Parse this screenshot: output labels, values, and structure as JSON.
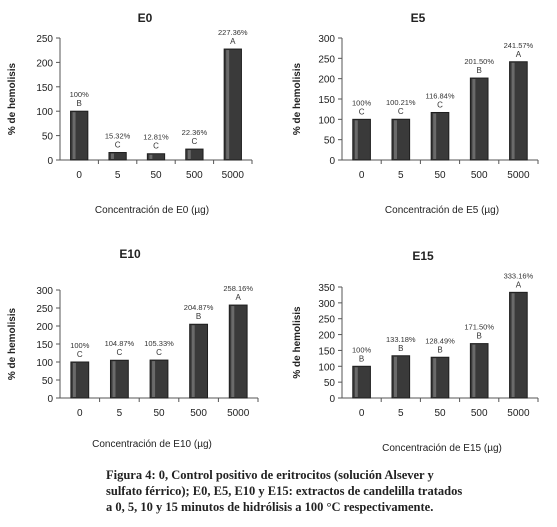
{
  "chart_data": [
    {
      "type": "bar",
      "title": "E0",
      "xlabel": "Concentración de E0 (µg)",
      "ylabel": "% de hemolisis",
      "ylim": [
        0,
        250
      ],
      "yticks": [
        0,
        50,
        100,
        150,
        200,
        250
      ],
      "categories": [
        "0",
        "5",
        "50",
        "500",
        "5000"
      ],
      "values": [
        100,
        15.32,
        12.81,
        22.36,
        227.36
      ],
      "value_labels": [
        "100%",
        "15.32%",
        "12.81%",
        "22.36%",
        "227.36%"
      ],
      "letters": [
        "B",
        "C",
        "C",
        "C",
        "A"
      ]
    },
    {
      "type": "bar",
      "title": "E5",
      "xlabel": "Concentración de E5 (µg)",
      "ylabel": "% de hemolisis",
      "ylim": [
        0,
        300
      ],
      "yticks": [
        0,
        50,
        100,
        150,
        200,
        250,
        300
      ],
      "categories": [
        "0",
        "5",
        "50",
        "500",
        "5000"
      ],
      "values": [
        100,
        100.21,
        116.84,
        201.5,
        241.57
      ],
      "value_labels": [
        "100%",
        "100.21%",
        "116.84%",
        "201.50%",
        "241.57%"
      ],
      "letters": [
        "C",
        "C",
        "C",
        "B",
        "A"
      ]
    },
    {
      "type": "bar",
      "title": "E10",
      "xlabel": "Concentración de E10 (µg)",
      "ylabel": "% de hemolisis",
      "ylim": [
        0,
        300
      ],
      "yticks": [
        0,
        50,
        100,
        150,
        200,
        250,
        300
      ],
      "categories": [
        "0",
        "5",
        "50",
        "500",
        "5000"
      ],
      "values": [
        100,
        104.87,
        105.33,
        204.87,
        258.16
      ],
      "value_labels": [
        "100%",
        "104.87%",
        "105.33%",
        "204.87%",
        "258.16%"
      ],
      "letters": [
        "C",
        "C",
        "C",
        "B",
        "A"
      ]
    },
    {
      "type": "bar",
      "title": "E15",
      "xlabel": "Concentración de E15 (µg)",
      "ylabel": "% de hemolisis",
      "ylim": [
        0,
        350
      ],
      "yticks": [
        0,
        50,
        100,
        150,
        200,
        250,
        300,
        350
      ],
      "categories": [
        "0",
        "5",
        "50",
        "500",
        "5000"
      ],
      "values": [
        100,
        133.18,
        128.49,
        171.5,
        333.16
      ],
      "value_labels": [
        "100%",
        "133.18%",
        "128.49%",
        "171.50%",
        "333.16%"
      ],
      "letters": [
        "B",
        "B",
        "B",
        "B",
        "A"
      ]
    }
  ],
  "caption": {
    "line1": "Figura 4: 0, Control positivo de eritrocitos (solución Alsever   y",
    "line2": "sulfato férrico); E0, E5, E10 y E15: extractos de candelilla tratados",
    "line3": "a 0, 5, 10 y 15 minutos de hidrólisis a 100 °C respectivamente."
  }
}
